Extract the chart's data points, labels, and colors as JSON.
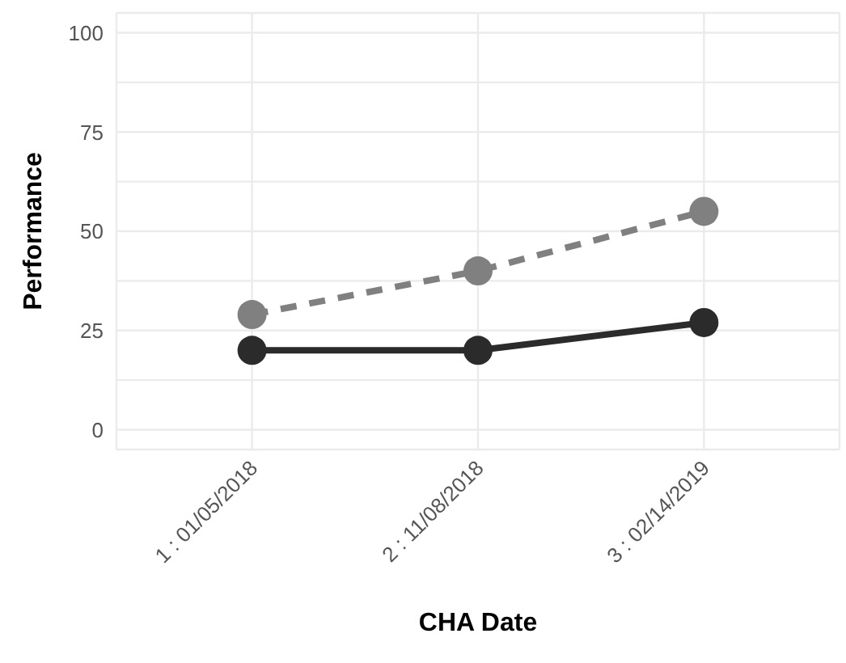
{
  "chart_data": {
    "type": "line",
    "xlabel": "CHA Date",
    "ylabel": "Performance",
    "categories": [
      "1 : 01/05/2018",
      "2 : 11/08/2018",
      "3 : 02/14/2019"
    ],
    "series": [
      {
        "color": "#2b2b2b",
        "values": [
          20,
          20,
          27
        ],
        "line_style": "solid"
      },
      {
        "color": "#808080",
        "values": [
          29,
          40,
          55
        ],
        "line_style": "dashed"
      }
    ],
    "ylim": [
      -5,
      105
    ],
    "yticks": [
      0,
      {
        "value": 12.5,
        "label": null
      },
      25,
      {
        "value": 37.5,
        "label": null
      },
      50,
      {
        "value": 62.5,
        "label": null
      },
      75,
      {
        "value": 87.5,
        "label": null
      },
      100
    ],
    "grid": true,
    "marker": "circle",
    "legend": false
  }
}
